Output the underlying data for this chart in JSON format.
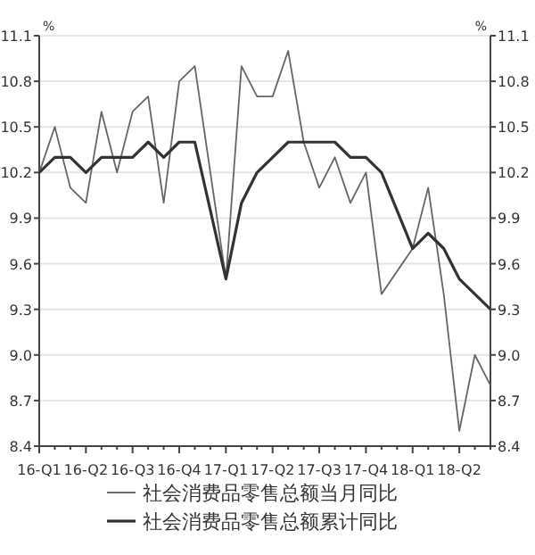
{
  "chart_data": {
    "type": "line",
    "ylabel": "%",
    "y2label": "%",
    "categories": [
      "16-Q1",
      null,
      null,
      "16-Q2",
      null,
      null,
      "16-Q3",
      null,
      null,
      "16-Q4",
      null,
      null,
      "17-Q1",
      null,
      null,
      "17-Q2",
      null,
      null,
      "17-Q3",
      null,
      null,
      "17-Q4",
      null,
      null,
      "18-Q1",
      null,
      null,
      "18-Q2",
      null,
      null
    ],
    "ylim": [
      8.4,
      11.1
    ],
    "yticks": [
      8.4,
      8.7,
      {
        "value": 9,
        "label": "9.0"
      },
      9.3,
      9.6,
      9.9,
      10.2,
      10.5,
      10.8,
      11.1
    ],
    "y2lim": [
      8.4,
      11.1
    ],
    "y2ticks": [
      8.4,
      8.7,
      {
        "value": 9,
        "label": "9.0"
      },
      9.3,
      9.6,
      9.9,
      10.2,
      10.5,
      10.8,
      11.1
    ],
    "grid": "y",
    "legend": "bottom",
    "marker": "none",
    "line_style": "solid",
    "series": [
      {
        "name": "社会消费品零售总额当月同比",
        "color": "#666666",
        "values": [
          10.2,
          10.5,
          10.1,
          10.0,
          10.6,
          10.2,
          10.6,
          10.7,
          10.0,
          10.8,
          10.9,
          null,
          9.5,
          10.9,
          10.7,
          10.7,
          11.0,
          10.4,
          10.1,
          10.3,
          10.0,
          10.2,
          9.4,
          null,
          9.7,
          10.1,
          9.4,
          8.5,
          9.0,
          8.8
        ]
      },
      {
        "name": "社会消费品零售总额累计同比",
        "color": "#333333",
        "values": [
          10.2,
          10.3,
          10.3,
          10.2,
          10.3,
          10.3,
          10.3,
          10.4,
          10.3,
          10.4,
          10.4,
          null,
          9.5,
          10.0,
          10.2,
          10.3,
          10.4,
          10.4,
          10.4,
          10.4,
          10.3,
          10.3,
          10.2,
          null,
          9.7,
          9.8,
          9.7,
          9.5,
          9.4,
          9.3
        ]
      }
    ]
  }
}
